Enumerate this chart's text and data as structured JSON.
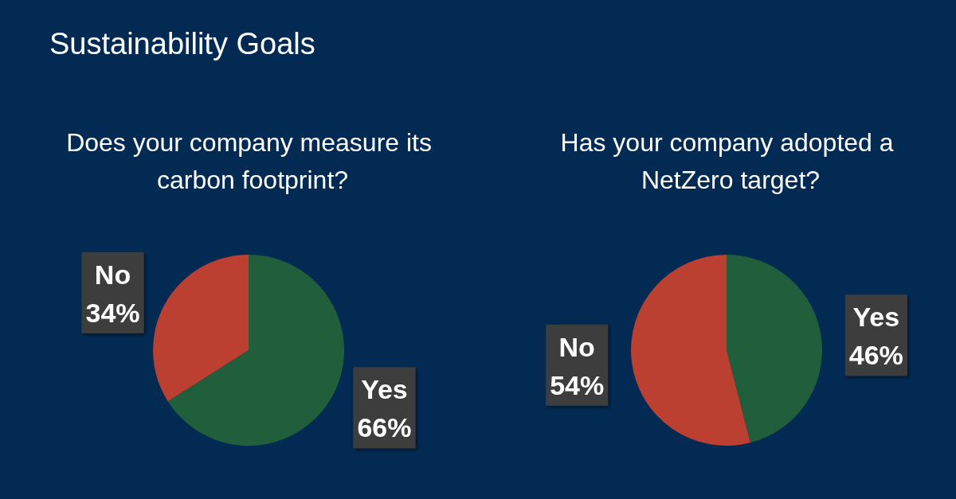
{
  "chart_data": [
    {
      "type": "pie",
      "title": "Does your company measure its carbon footprint?",
      "annotations": [
        "Sustainability Goals"
      ],
      "categories": [
        "Yes",
        "No"
      ],
      "values": [
        66,
        34
      ],
      "value_labels": [
        "66%",
        "34%"
      ],
      "colors": [
        "#215f3c",
        "#bc4032"
      ]
    },
    {
      "type": "pie",
      "title": "Has your company adopted a NetZero target?",
      "categories": [
        "Yes",
        "No"
      ],
      "values": [
        46,
        54
      ],
      "value_labels": [
        "46%",
        "54%"
      ],
      "colors": [
        "#215f3c",
        "#bc4032"
      ]
    }
  ]
}
